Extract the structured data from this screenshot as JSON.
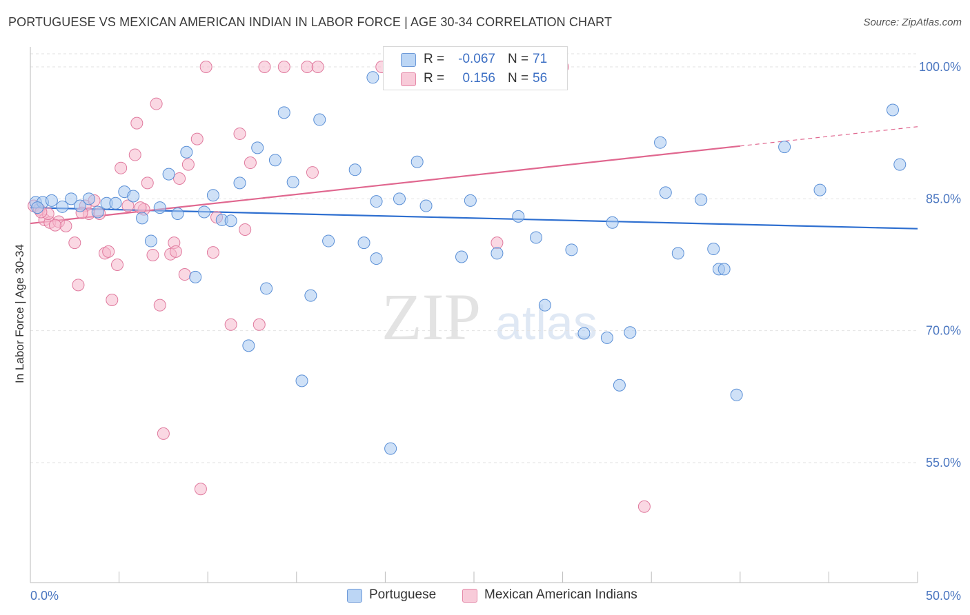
{
  "title": "PORTUGUESE VS MEXICAN AMERICAN INDIAN IN LABOR FORCE | AGE 30-34 CORRELATION CHART",
  "source": "Source: ZipAtlas.com",
  "watermark": {
    "zip": "ZIP",
    "atlas": "atlas"
  },
  "legend": {
    "rows": [
      {
        "r_label": "R =",
        "r_value": "-0.067",
        "n_label": "N =",
        "n_value": "71",
        "color": "#a8c8f0"
      },
      {
        "r_label": "R =",
        "r_value": "0.156",
        "n_label": "N =",
        "n_value": "56",
        "color": "#f5b8cc"
      }
    ]
  },
  "bottom_legend": {
    "portuguese": "Portuguese",
    "mexican": "Mexican American Indians"
  },
  "chart_data": {
    "type": "scatter",
    "title": "PORTUGUESE VS MEXICAN AMERICAN INDIAN IN LABOR FORCE | AGE 30-34 CORRELATION CHART",
    "xlabel": "",
    "ylabel": "In Labor Force | Age 30-34",
    "xlim": [
      0,
      50
    ],
    "ylim": [
      40,
      102
    ],
    "x_tick_labels": [
      "0.0%",
      "50.0%"
    ],
    "y_ticks": [
      55,
      70,
      85,
      100
    ],
    "y_tick_labels": [
      "55.0%",
      "70.0%",
      "85.0%",
      "100.0%"
    ],
    "grid": "horizontal-dashed",
    "legend_position": "top-center",
    "colors": {
      "portuguese_fill": "#a8c8f0",
      "portuguese_stroke": "#5a8fd6",
      "portuguese_line": "#2e6fd0",
      "mexican_fill": "#f5b8cc",
      "mexican_stroke": "#e07a9e",
      "mexican_line": "#e0678f"
    },
    "series": [
      {
        "name": "Portuguese",
        "trend": {
          "x": [
            0,
            50
          ],
          "y": [
            84.0,
            81.6
          ]
        },
        "points": [
          [
            0.3,
            84.6
          ],
          [
            0.7,
            84.6
          ],
          [
            1.2,
            84.8
          ],
          [
            1.8,
            84.1
          ],
          [
            2.3,
            85.0
          ],
          [
            2.8,
            84.2
          ],
          [
            3.3,
            85.0
          ],
          [
            3.8,
            83.5
          ],
          [
            4.3,
            84.5
          ],
          [
            4.8,
            84.5
          ],
          [
            5.3,
            85.8
          ],
          [
            5.8,
            85.3
          ],
          [
            6.3,
            82.8
          ],
          [
            6.8,
            80.2
          ],
          [
            7.3,
            84.0
          ],
          [
            7.8,
            87.8
          ],
          [
            8.3,
            83.3
          ],
          [
            8.8,
            90.3
          ],
          [
            9.3,
            76.1
          ],
          [
            9.8,
            83.5
          ],
          [
            10.3,
            85.4
          ],
          [
            10.8,
            82.6
          ],
          [
            11.3,
            82.5
          ],
          [
            11.8,
            86.8
          ],
          [
            12.3,
            68.3
          ],
          [
            12.8,
            90.8
          ],
          [
            13.3,
            74.8
          ],
          [
            13.8,
            89.4
          ],
          [
            14.3,
            94.8
          ],
          [
            14.8,
            86.9
          ],
          [
            15.3,
            64.3
          ],
          [
            15.8,
            74.0
          ],
          [
            16.3,
            94.0
          ],
          [
            16.8,
            80.2
          ],
          [
            18.3,
            88.3
          ],
          [
            18.8,
            80.0
          ],
          [
            19.3,
            98.8
          ],
          [
            19.5,
            84.7
          ],
          [
            19.5,
            78.2
          ],
          [
            20.3,
            56.6
          ],
          [
            20.8,
            85.0
          ],
          [
            21.8,
            89.2
          ],
          [
            22.3,
            84.2
          ],
          [
            24.3,
            78.4
          ],
          [
            24.8,
            84.8
          ],
          [
            26.3,
            78.8
          ],
          [
            27.5,
            83.0
          ],
          [
            28.5,
            80.6
          ],
          [
            29.0,
            72.9
          ],
          [
            30.5,
            79.2
          ],
          [
            31.2,
            69.7
          ],
          [
            32.5,
            69.2
          ],
          [
            32.8,
            82.3
          ],
          [
            33.2,
            63.8
          ],
          [
            33.8,
            69.8
          ],
          [
            35.5,
            91.4
          ],
          [
            35.8,
            85.7
          ],
          [
            36.5,
            78.8
          ],
          [
            37.8,
            84.9
          ],
          [
            38.5,
            79.3
          ],
          [
            38.8,
            77.0
          ],
          [
            39.1,
            77.0
          ],
          [
            39.8,
            62.7
          ],
          [
            42.5,
            90.9
          ],
          [
            44.5,
            86.0
          ],
          [
            48.6,
            95.1
          ],
          [
            49.0,
            88.9
          ],
          [
            28.0,
            100.0
          ],
          [
            29.5,
            100.0
          ],
          [
            23.0,
            100.0
          ],
          [
            0.4,
            84.0
          ]
        ]
      },
      {
        "name": "Mexican American Indians",
        "trend": {
          "x": [
            0,
            50
          ],
          "y": [
            82.2,
            93.2
          ]
        },
        "points": [
          [
            0.2,
            84.2
          ],
          [
            0.5,
            83.8
          ],
          [
            0.8,
            82.6
          ],
          [
            1.1,
            82.3
          ],
          [
            1.6,
            82.4
          ],
          [
            2.0,
            81.9
          ],
          [
            2.5,
            80.0
          ],
          [
            2.7,
            75.2
          ],
          [
            3.1,
            84.2
          ],
          [
            3.3,
            83.3
          ],
          [
            3.6,
            84.8
          ],
          [
            3.9,
            83.3
          ],
          [
            4.2,
            78.8
          ],
          [
            4.6,
            73.5
          ],
          [
            4.9,
            77.5
          ],
          [
            5.1,
            88.5
          ],
          [
            5.5,
            84.2
          ],
          [
            5.9,
            90.0
          ],
          [
            6.0,
            93.6
          ],
          [
            6.4,
            83.8
          ],
          [
            6.6,
            86.8
          ],
          [
            6.9,
            78.6
          ],
          [
            7.1,
            95.8
          ],
          [
            7.3,
            72.9
          ],
          [
            7.5,
            58.3
          ],
          [
            7.9,
            78.7
          ],
          [
            8.1,
            80.0
          ],
          [
            8.4,
            87.3
          ],
          [
            8.7,
            76.4
          ],
          [
            8.9,
            88.9
          ],
          [
            9.4,
            91.8
          ],
          [
            9.6,
            52.0
          ],
          [
            9.9,
            100.0
          ],
          [
            10.3,
            78.9
          ],
          [
            10.5,
            82.9
          ],
          [
            11.3,
            70.7
          ],
          [
            11.8,
            92.4
          ],
          [
            12.1,
            81.5
          ],
          [
            12.4,
            89.1
          ],
          [
            12.9,
            70.7
          ],
          [
            13.2,
            100.0
          ],
          [
            14.3,
            100.0
          ],
          [
            15.6,
            100.0
          ],
          [
            15.9,
            88.0
          ],
          [
            16.2,
            100.0
          ],
          [
            19.8,
            100.0
          ],
          [
            26.3,
            80.0
          ],
          [
            34.6,
            50.0
          ],
          [
            30.0,
            100.0
          ],
          [
            1.4,
            82.0
          ],
          [
            4.4,
            79.0
          ],
          [
            6.2,
            84.0
          ],
          [
            2.9,
            83.4
          ],
          [
            8.2,
            79.0
          ],
          [
            1.0,
            83.3
          ],
          [
            0.6,
            83.5
          ]
        ]
      }
    ]
  }
}
